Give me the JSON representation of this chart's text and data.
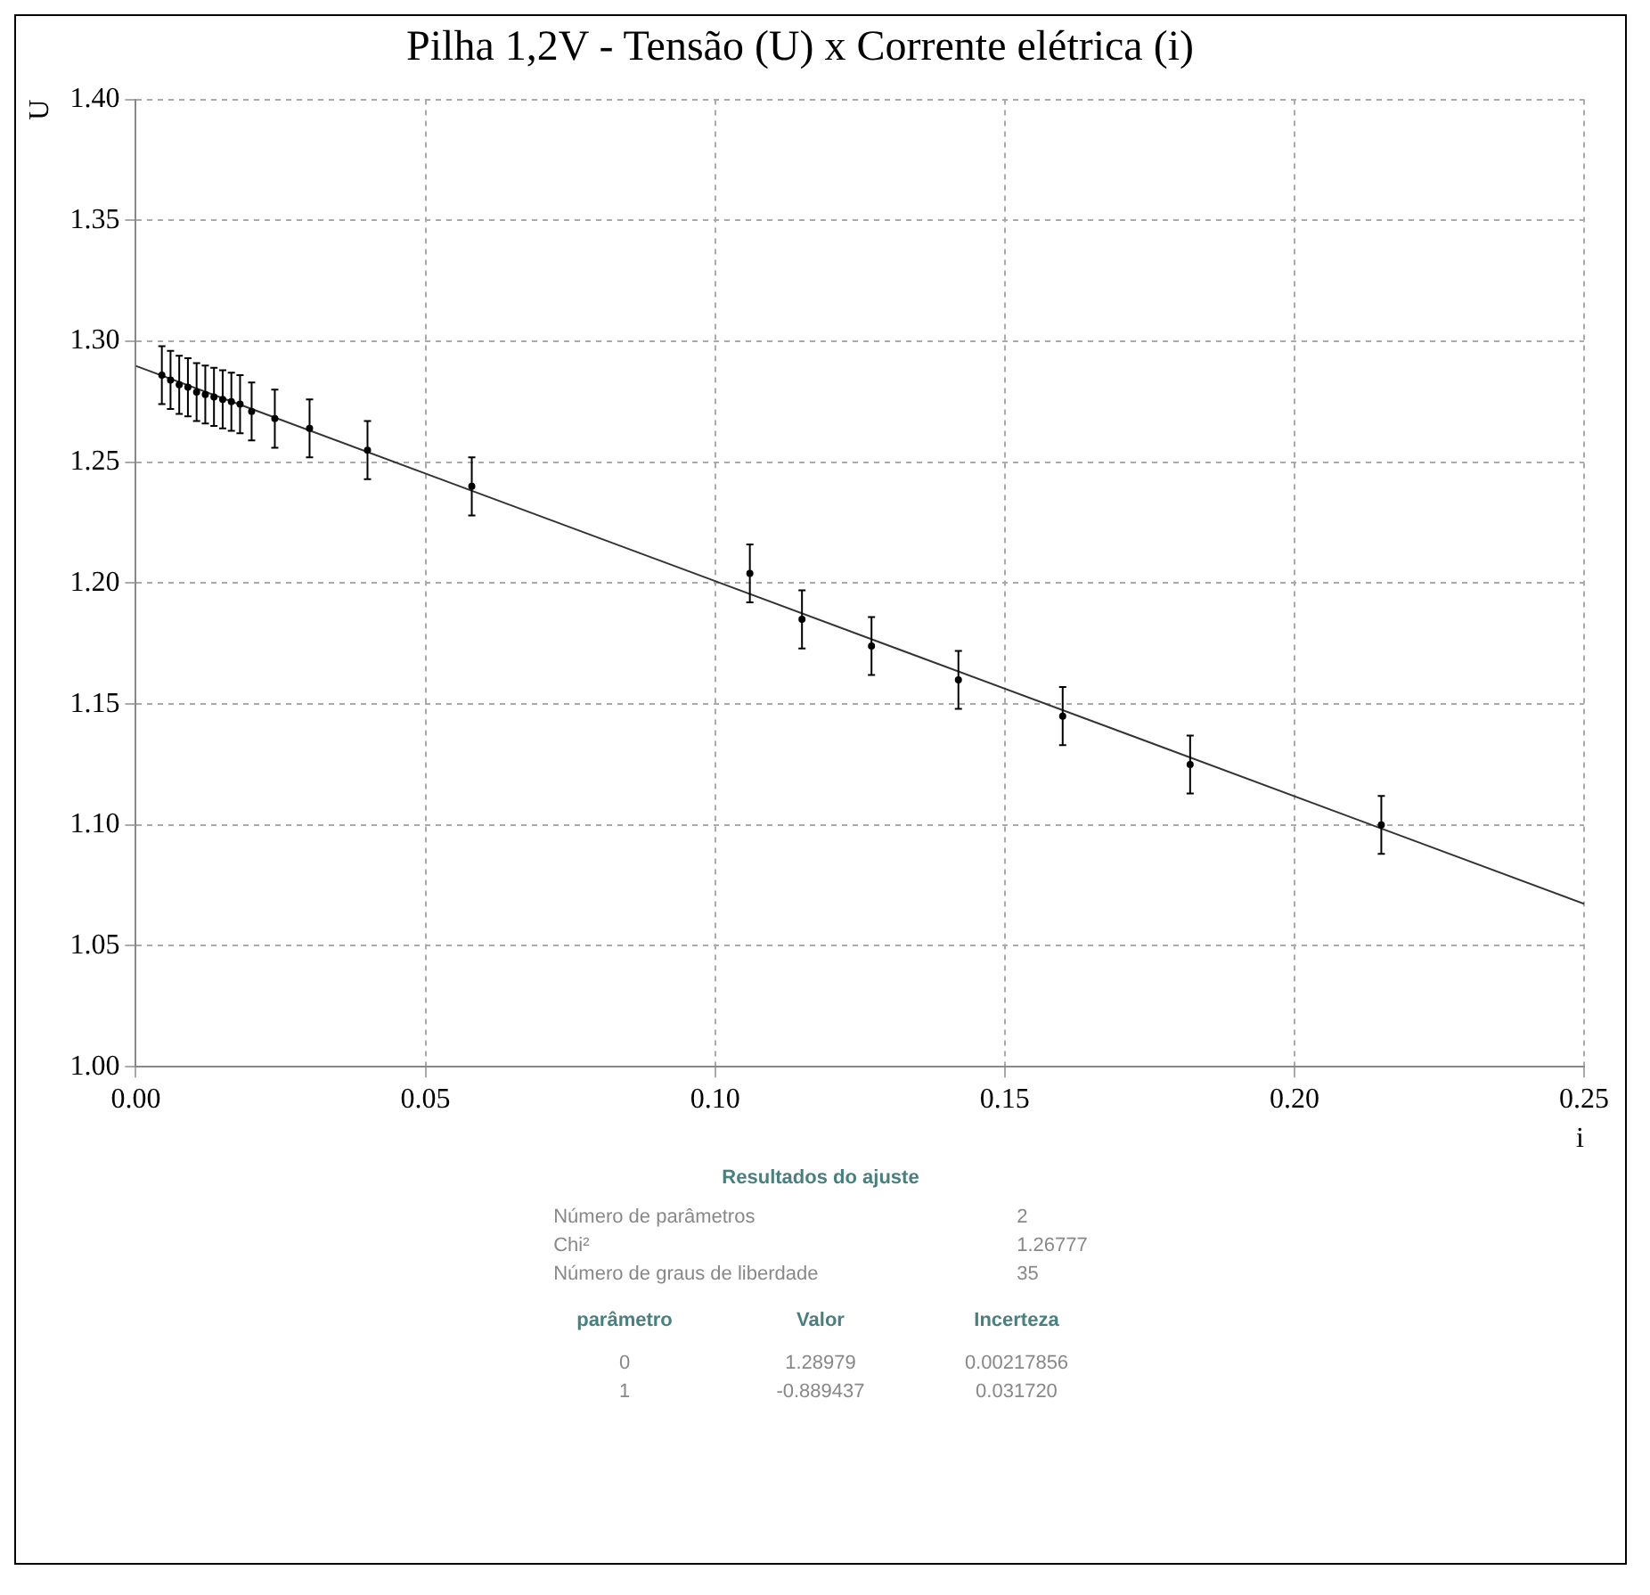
{
  "chart_data": {
    "type": "scatter",
    "title": "Pilha 1,2V - Tensão (U) x Corrente elétrica (i)",
    "xlabel": "i",
    "ylabel": "U",
    "xlim": [
      0,
      0.25
    ],
    "xticks": [
      {
        "value": 0,
        "label": "0.00"
      },
      0.05,
      {
        "value": 0.1,
        "label": "0.10"
      },
      0.15,
      {
        "value": 0.2,
        "label": "0.20"
      },
      0.25
    ],
    "ylim": [
      1,
      1.4
    ],
    "yticks": [
      {
        "value": 1,
        "label": "1.00"
      },
      1.05,
      {
        "value": 1.1,
        "label": "1.10"
      },
      1.15,
      {
        "value": 1.2,
        "label": "1.20"
      },
      1.25,
      {
        "value": 1.3,
        "label": "1.30"
      },
      1.35,
      {
        "value": 1.4,
        "label": "1.40"
      }
    ],
    "grid": true,
    "legend": false,
    "marker": "circle",
    "series": [
      {
        "type": "scatter",
        "color": "#000000",
        "x": [
          0.0045,
          0.006,
          0.0075,
          0.009,
          0.0105,
          0.012,
          0.0135,
          0.015,
          0.0165,
          0.018,
          0.02,
          0.024,
          0.03,
          0.04,
          0.058,
          0.106,
          0.115,
          0.127,
          0.142,
          0.16,
          0.182,
          0.215
        ],
        "values": [
          1.286,
          1.284,
          1.282,
          1.281,
          1.279,
          1.278,
          1.277,
          1.276,
          1.275,
          1.274,
          1.271,
          1.268,
          1.264,
          1.255,
          1.24,
          1.204,
          1.185,
          1.174,
          1.16,
          1.145,
          1.125,
          1.1
        ],
        "errors": [
          0.012,
          0.012,
          0.012,
          0.012,
          0.012,
          0.012,
          0.012,
          0.012,
          0.012,
          0.012,
          0.012,
          0.012,
          0.012,
          0.012,
          0.012,
          0.012,
          0.012,
          0.012,
          0.012,
          0.012,
          0.012,
          0.012
        ]
      },
      {
        "type": "line",
        "color": "#333333",
        "x": [
          0,
          0.25
        ],
        "values": [
          1.2898,
          1.0674
        ],
        "marker": "none",
        "line_style": "solid"
      }
    ],
    "annotations": [
      "Resultados do ajuste",
      "Número de parâmetros",
      "2",
      "Chi²",
      "1.26777",
      "Número de graus de liberdade",
      "35",
      "parâmetro",
      "Valor",
      "Incerteza",
      "0",
      "1.28979",
      "0.00217856",
      "1",
      "-0.889437",
      "0.031720"
    ]
  }
}
